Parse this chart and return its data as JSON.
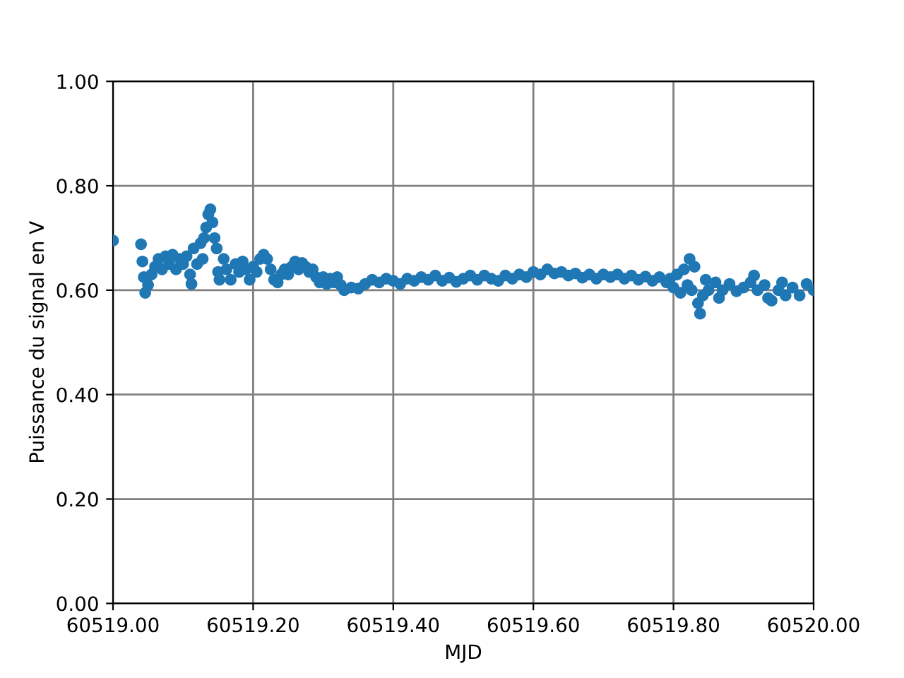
{
  "chart_data": {
    "type": "scatter",
    "xlabel": "MJD",
    "ylabel": "Puissance du signal en V",
    "x": [
      60519.0,
      60519.04,
      60519.042,
      60519.044,
      60519.046,
      60519.05,
      60519.055,
      60519.06,
      60519.065,
      60519.07,
      60519.075,
      60519.08,
      60519.085,
      60519.09,
      60519.095,
      60519.1,
      60519.105,
      60519.11,
      60519.112,
      60519.115,
      60519.12,
      60519.125,
      60519.128,
      60519.13,
      60519.133,
      60519.136,
      60519.139,
      60519.142,
      60519.145,
      60519.148,
      60519.15,
      60519.152,
      60519.158,
      60519.162,
      60519.168,
      60519.175,
      60519.18,
      60519.185,
      60519.19,
      60519.195,
      60519.2,
      60519.205,
      60519.21,
      60519.215,
      60519.22,
      60519.225,
      60519.23,
      60519.235,
      60519.24,
      60519.245,
      60519.25,
      60519.255,
      60519.26,
      60519.265,
      60519.27,
      60519.275,
      60519.28,
      60519.285,
      60519.29,
      60519.295,
      60519.3,
      60519.305,
      60519.31,
      60519.315,
      60519.32,
      60519.325,
      60519.33,
      60519.34,
      60519.35,
      60519.36,
      60519.37,
      60519.38,
      60519.39,
      60519.4,
      60519.41,
      60519.42,
      60519.43,
      60519.44,
      60519.45,
      60519.46,
      60519.47,
      60519.48,
      60519.49,
      60519.5,
      60519.51,
      60519.52,
      60519.53,
      60519.54,
      60519.55,
      60519.56,
      60519.57,
      60519.58,
      60519.59,
      60519.6,
      60519.61,
      60519.62,
      60519.63,
      60519.64,
      60519.65,
      60519.66,
      60519.67,
      60519.68,
      60519.69,
      60519.7,
      60519.71,
      60519.72,
      60519.73,
      60519.74,
      60519.75,
      60519.76,
      60519.77,
      60519.78,
      60519.79,
      60519.795,
      60519.8,
      60519.805,
      60519.81,
      60519.815,
      60519.82,
      60519.823,
      60519.826,
      60519.83,
      60519.835,
      60519.838,
      60519.842,
      60519.846,
      60519.85,
      60519.86,
      60519.865,
      60519.87,
      60519.88,
      60519.89,
      60519.9,
      60519.91,
      60519.915,
      60519.92,
      60519.93,
      60519.935,
      60519.94,
      60519.95,
      60519.955,
      60519.96,
      60519.97,
      60519.98,
      60519.99,
      60520.0
    ],
    "series": [
      {
        "color": "#1f77b4",
        "values": [
          0.695,
          0.688,
          0.655,
          0.625,
          0.595,
          0.61,
          0.63,
          0.645,
          0.66,
          0.64,
          0.665,
          0.65,
          0.668,
          0.64,
          0.66,
          0.65,
          0.665,
          0.63,
          0.612,
          0.68,
          0.65,
          0.69,
          0.66,
          0.7,
          0.72,
          0.745,
          0.755,
          0.73,
          0.7,
          0.68,
          0.635,
          0.62,
          0.66,
          0.64,
          0.62,
          0.65,
          0.635,
          0.655,
          0.64,
          0.62,
          0.645,
          0.635,
          0.66,
          0.668,
          0.66,
          0.64,
          0.62,
          0.615,
          0.63,
          0.64,
          0.63,
          0.645,
          0.655,
          0.64,
          0.652,
          0.645,
          0.635,
          0.64,
          0.625,
          0.615,
          0.625,
          0.612,
          0.622,
          0.615,
          0.625,
          0.61,
          0.6,
          0.605,
          0.603,
          0.612,
          0.62,
          0.615,
          0.622,
          0.618,
          0.612,
          0.622,
          0.618,
          0.625,
          0.62,
          0.628,
          0.618,
          0.624,
          0.616,
          0.622,
          0.628,
          0.62,
          0.628,
          0.622,
          0.618,
          0.628,
          0.622,
          0.63,
          0.625,
          0.635,
          0.63,
          0.64,
          0.632,
          0.635,
          0.628,
          0.632,
          0.624,
          0.63,
          0.622,
          0.63,
          0.625,
          0.63,
          0.622,
          0.628,
          0.62,
          0.626,
          0.618,
          0.625,
          0.615,
          0.622,
          0.605,
          0.63,
          0.595,
          0.64,
          0.61,
          0.66,
          0.6,
          0.645,
          0.575,
          0.555,
          0.59,
          0.62,
          0.6,
          0.615,
          0.585,
          0.6,
          0.612,
          0.598,
          0.605,
          0.615,
          0.628,
          0.6,
          0.61,
          0.585,
          0.58,
          0.6,
          0.615,
          0.59,
          0.605,
          0.59,
          0.612,
          0.6
        ]
      }
    ],
    "xlim": [
      60519.0,
      60520.0
    ],
    "xticks": [
      {
        "value": 60519.0,
        "label": "60519.00"
      },
      {
        "value": 60519.2,
        "label": "60519.20"
      },
      {
        "value": 60519.4,
        "label": "60519.40"
      },
      {
        "value": 60519.6,
        "label": "60519.60"
      },
      {
        "value": 60519.8,
        "label": "60519.80"
      },
      {
        "value": 60520.0,
        "label": "60520.00"
      }
    ],
    "ylim": [
      0,
      1
    ],
    "yticks": [
      {
        "value": 0,
        "label": "0.00"
      },
      {
        "value": 0.2,
        "label": "0.20"
      },
      {
        "value": 0.4,
        "label": "0.40"
      },
      {
        "value": 0.6,
        "label": "0.60"
      },
      {
        "value": 0.8,
        "label": "0.80"
      },
      {
        "value": 1,
        "label": "1.00"
      }
    ],
    "grid": true,
    "marker": "circle"
  }
}
